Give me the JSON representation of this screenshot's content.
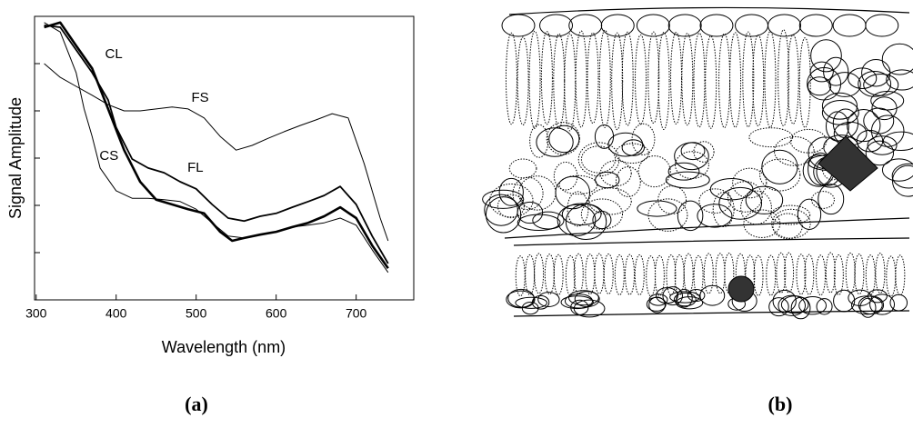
{
  "chart_data": {
    "type": "line",
    "xlabel": "Wavelength (nm)",
    "ylabel": "Signal Amplitude",
    "xlim": [
      298,
      772
    ],
    "xticks": [
      300,
      400,
      500,
      600,
      700
    ],
    "ylim": [
      0,
      6
    ],
    "yticks": [
      1,
      2,
      3,
      4,
      5,
      6
    ],
    "series": [
      {
        "name": "CL",
        "color": "#000000",
        "width": 2.6,
        "x": [
          310,
          330,
          350,
          370,
          390,
          410,
          430,
          450,
          470,
          490,
          510,
          530,
          545,
          560,
          580,
          600,
          620,
          640,
          660,
          680,
          700,
          720,
          740
        ],
        "values": [
          5.77,
          5.87,
          5.38,
          4.9,
          4.04,
          3.17,
          2.5,
          2.12,
          2.02,
          1.92,
          1.83,
          1.44,
          1.25,
          1.31,
          1.38,
          1.44,
          1.54,
          1.63,
          1.77,
          1.96,
          1.73,
          1.15,
          0.67
        ]
      },
      {
        "name": "FL",
        "color": "#000000",
        "width": 1.8,
        "x": [
          310,
          330,
          350,
          370,
          390,
          400,
          420,
          440,
          460,
          480,
          500,
          520,
          540,
          560,
          580,
          600,
          620,
          640,
          660,
          680,
          700,
          720,
          740
        ],
        "values": [
          5.81,
          5.77,
          5.29,
          4.81,
          4.23,
          3.65,
          2.98,
          2.79,
          2.69,
          2.5,
          2.35,
          2.02,
          1.73,
          1.67,
          1.77,
          1.83,
          1.96,
          2.08,
          2.21,
          2.4,
          2.02,
          1.35,
          0.77
        ]
      },
      {
        "name": "FS",
        "color": "#000000",
        "width": 1,
        "x": [
          310,
          330,
          350,
          370,
          390,
          410,
          430,
          450,
          470,
          490,
          510,
          530,
          550,
          570,
          590,
          610,
          630,
          650,
          670,
          690,
          710,
          730,
          740
        ],
        "values": [
          5.0,
          4.71,
          4.52,
          4.33,
          4.13,
          4.0,
          4.0,
          4.04,
          4.08,
          4.04,
          3.85,
          3.46,
          3.17,
          3.27,
          3.42,
          3.56,
          3.69,
          3.81,
          3.94,
          3.85,
          2.88,
          1.73,
          1.25
        ]
      },
      {
        "name": "CS",
        "color": "#000000",
        "width": 1,
        "x": [
          310,
          330,
          350,
          360,
          370,
          380,
          400,
          420,
          440,
          460,
          480,
          500,
          520,
          540,
          560,
          580,
          600,
          620,
          640,
          660,
          680,
          700,
          720,
          740
        ],
        "values": [
          5.87,
          5.67,
          4.81,
          4.04,
          3.46,
          2.79,
          2.31,
          2.15,
          2.15,
          2.12,
          2.08,
          1.92,
          1.63,
          1.35,
          1.31,
          1.38,
          1.44,
          1.54,
          1.58,
          1.63,
          1.73,
          1.58,
          1.06,
          0.58
        ]
      }
    ],
    "annotations": [
      {
        "text": "CL",
        "x": 397,
        "y": 5.19
      },
      {
        "text": "FS",
        "x": 505,
        "y": 4.27
      },
      {
        "text": "CS",
        "x": 391,
        "y": 3.04
      },
      {
        "text": "FL",
        "x": 499,
        "y": 2.79
      }
    ]
  },
  "figure_labels": [
    "(a)",
    "(b)"
  ]
}
